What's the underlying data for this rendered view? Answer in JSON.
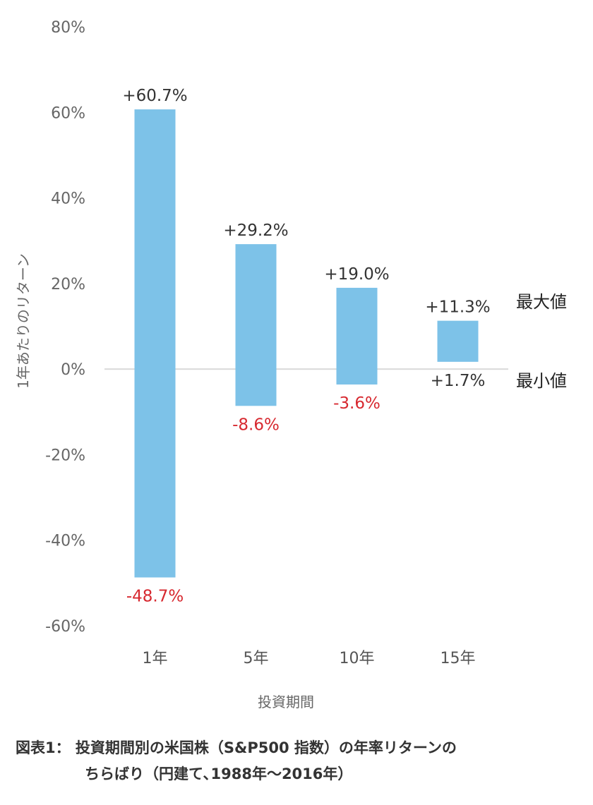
{
  "chart_data": {
    "type": "floating-bar",
    "categories": [
      "1年",
      "5年",
      "10年",
      "15年"
    ],
    "max_values": [
      60.7,
      29.2,
      19.0,
      11.3
    ],
    "min_values": [
      -48.7,
      -8.6,
      -3.6,
      1.7
    ],
    "max_labels": [
      "+60.7%",
      "+29.2%",
      "+19.0%",
      "+11.3%"
    ],
    "min_labels": [
      "-48.7%",
      "-8.6%",
      "-3.6%",
      "+1.7%"
    ],
    "ylim": [
      -60,
      80
    ],
    "yticks": [
      80,
      60,
      40,
      20,
      0,
      -20,
      -40,
      -60
    ],
    "ytick_labels": [
      "80%",
      "60%",
      "40%",
      "20%",
      "0%",
      "-20%",
      "-40%",
      "-60%"
    ],
    "xlabel": "投資期間",
    "ylabel": "1年あたりのリターン",
    "max_marker": "最大値",
    "min_marker": "最小値",
    "colors": {
      "bar": "#7dc2e8",
      "negative_label": "#d7282f",
      "zero_line": "#d9d9d9"
    }
  },
  "caption": {
    "line1": "図表1： 投資期間別の米国株（S&P500 指数）の年率リターンの",
    "line2": "ちらばり（円建て､1988年～2016年）"
  }
}
